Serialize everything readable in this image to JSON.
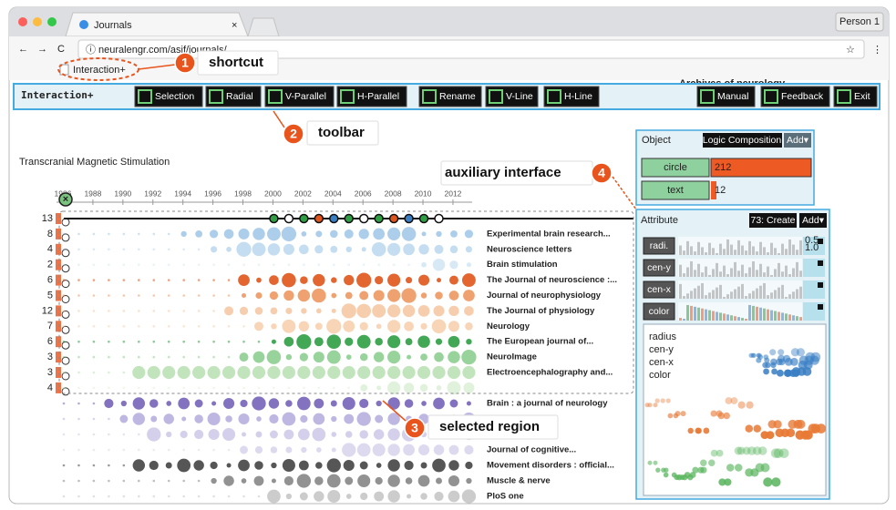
{
  "browser": {
    "tab": "Journals",
    "profile": "Person 1",
    "url": "neuralengr.com/asif/journals/",
    "bookmark": "Interaction+"
  },
  "toolbar": {
    "title": "Interaction+",
    "background_label": "Archives of neurology",
    "buttons": [
      "Selection",
      "Radial",
      "V-Parallel",
      "H-Parallel",
      "Rename",
      "V-Line",
      "H-Line",
      "Manual",
      "Feedback",
      "Exit"
    ]
  },
  "annotations": [
    {
      "number": "1",
      "label": "shortcut"
    },
    {
      "number": "2",
      "label": "toolbar"
    },
    {
      "number": "3",
      "label": "selected region"
    },
    {
      "number": "4",
      "label": "auxiliary interface"
    }
  ],
  "view": {
    "title": "Transcranial Magnetic Stimulation",
    "years": [
      1986,
      1988,
      1990,
      1992,
      1994,
      1996,
      1998,
      2000,
      2002,
      2004,
      2006,
      2008,
      2010,
      2012
    ],
    "rows": [
      {
        "count": 13
      },
      {
        "count": 8,
        "journal": "Experimental brain research..."
      },
      {
        "count": 4,
        "journal": "Neuroscience letters"
      },
      {
        "count": 2,
        "journal": "Brain stimulation"
      },
      {
        "count": 6,
        "journal": "The Journal of neuroscience :..."
      },
      {
        "count": 5,
        "journal": "Journal of neurophysiology"
      },
      {
        "count": 12,
        "journal": "The Journal of physiology"
      },
      {
        "count": 7,
        "journal": "Neurology"
      },
      {
        "count": 6,
        "journal": "The European journal of..."
      },
      {
        "count": 3,
        "journal": "NeuroImage"
      },
      {
        "count": 3,
        "journal": "Electroencephalography and..."
      },
      {
        "count": 4
      }
    ],
    "more_journals": [
      "Brain : a journal of neurology",
      "Journal of cognitive...",
      "Movement disorders : official...",
      "Muscle & nerve",
      "PloS one"
    ]
  },
  "object_panel": {
    "title": "Object",
    "logic": "Logic Composition",
    "add": "Add▾",
    "items": [
      {
        "label": "circle",
        "count": "212"
      },
      {
        "label": "text",
        "count": "12"
      }
    ]
  },
  "attribute_panel": {
    "title": "Attribute",
    "create": "73: Create",
    "add": "Add▾",
    "attributes": [
      "radi.",
      "cen-y",
      "cen-x",
      "color"
    ],
    "scale": [
      "0.5",
      "1.0"
    ],
    "legend": [
      "radius",
      "cen-y",
      "cen-x",
      "color"
    ]
  }
}
